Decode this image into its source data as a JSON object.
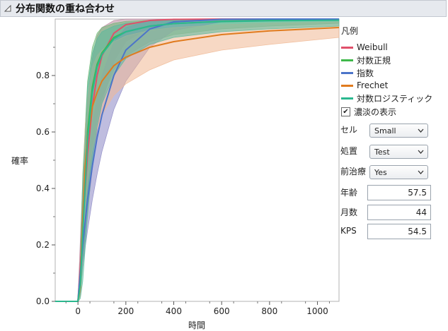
{
  "header": {
    "title": "分布関数の重ね合わせ"
  },
  "legend": {
    "title": "凡例",
    "items": [
      {
        "label": "Weibull",
        "color": "#e0506a"
      },
      {
        "label": "対数正規",
        "color": "#3fb84a"
      },
      {
        "label": "指数",
        "color": "#4c74c9"
      },
      {
        "label": "Frechet",
        "color": "#e07b1e"
      },
      {
        "label": "対数ロジスティック",
        "color": "#2bb88f"
      }
    ]
  },
  "shade_toggle": {
    "label": "濃淡の表示",
    "checked": true
  },
  "controls": {
    "cell": {
      "label": "セル",
      "value": "Small"
    },
    "treatment": {
      "label": "処置",
      "value": "Test"
    },
    "prior_therapy": {
      "label": "前治療",
      "value": "Yes"
    },
    "age": {
      "label": "年齢",
      "value": "57.5"
    },
    "months": {
      "label": "月数",
      "value": "44"
    },
    "kps": {
      "label": "KPS",
      "value": "54.5"
    }
  },
  "chart_data": {
    "type": "line",
    "title": "",
    "xlabel": "時間",
    "ylabel": "確率",
    "xlim": [
      -95,
      1090
    ],
    "ylim": [
      0,
      1
    ],
    "x_ticks": [
      0,
      200,
      400,
      600,
      800,
      1000
    ],
    "x_tick_labels": [
      "0",
      "200",
      "400",
      "600",
      "800",
      "1000"
    ],
    "y_ticks": [
      0,
      0.2,
      0.4,
      0.6,
      0.8
    ],
    "y_tick_labels": [
      "0.0",
      "0.2",
      "0.4",
      "0.6",
      "0.8"
    ],
    "grid": false,
    "legend_position": "right",
    "series": [
      {
        "name": "Weibull",
        "color": "#e0506a",
        "band_color": "#b8869c",
        "x": [
          0,
          10,
          20,
          40,
          60,
          80,
          100,
          150,
          200,
          300,
          400,
          600,
          800,
          1090
        ],
        "values": [
          0,
          0.12,
          0.27,
          0.52,
          0.69,
          0.8,
          0.87,
          0.95,
          0.98,
          0.995,
          0.999,
          1,
          1,
          1
        ],
        "lower": [
          0,
          0.05,
          0.13,
          0.32,
          0.47,
          0.6,
          0.7,
          0.85,
          0.92,
          0.97,
          0.99,
          0.998,
          1,
          1
        ],
        "upper": [
          0,
          0.22,
          0.43,
          0.71,
          0.86,
          0.94,
          0.97,
          0.995,
          1,
          1,
          1,
          1,
          1,
          1
        ]
      },
      {
        "name": "対数正規",
        "color": "#3fb84a",
        "band_color": "#6fb874",
        "x": [
          0,
          10,
          20,
          40,
          60,
          80,
          100,
          150,
          200,
          300,
          400,
          600,
          800,
          1090
        ],
        "values": [
          0,
          0.07,
          0.28,
          0.6,
          0.76,
          0.84,
          0.88,
          0.935,
          0.955,
          0.975,
          0.984,
          0.992,
          0.995,
          0.997
        ],
        "lower": [
          0,
          0.02,
          0.13,
          0.38,
          0.54,
          0.65,
          0.72,
          0.82,
          0.87,
          0.92,
          0.945,
          0.965,
          0.975,
          0.985
        ],
        "upper": [
          0,
          0.15,
          0.45,
          0.78,
          0.9,
          0.95,
          0.97,
          0.985,
          0.992,
          0.996,
          0.998,
          0.999,
          1,
          1
        ]
      },
      {
        "name": "指数",
        "color": "#4c74c9",
        "band_color": "#8a86c4",
        "x": [
          0,
          10,
          20,
          40,
          60,
          80,
          100,
          150,
          200,
          300,
          400,
          600,
          800,
          1090
        ],
        "values": [
          0,
          0.1,
          0.2,
          0.36,
          0.48,
          0.58,
          0.66,
          0.8,
          0.89,
          0.965,
          0.99,
          0.999,
          1,
          1
        ],
        "lower": [
          0,
          0.06,
          0.13,
          0.25,
          0.36,
          0.45,
          0.53,
          0.68,
          0.78,
          0.9,
          0.96,
          0.99,
          1,
          1
        ],
        "upper": [
          0,
          0.15,
          0.28,
          0.48,
          0.62,
          0.72,
          0.8,
          0.92,
          0.97,
          0.995,
          1,
          1,
          1,
          1
        ]
      },
      {
        "name": "Frechet",
        "color": "#e07b1e",
        "band_color": "#f0b894",
        "x": [
          0,
          10,
          20,
          30,
          40,
          60,
          80,
          100,
          150,
          200,
          300,
          400,
          600,
          800,
          1090
        ],
        "values": [
          0,
          0.05,
          0.29,
          0.48,
          0.58,
          0.69,
          0.74,
          0.78,
          0.835,
          0.865,
          0.9,
          0.92,
          0.945,
          0.958,
          0.97
        ],
        "lower": [
          0,
          0.02,
          0.18,
          0.33,
          0.42,
          0.54,
          0.61,
          0.66,
          0.73,
          0.77,
          0.82,
          0.855,
          0.89,
          0.91,
          0.935
        ],
        "upper": [
          0,
          0.09,
          0.4,
          0.62,
          0.72,
          0.83,
          0.87,
          0.89,
          0.92,
          0.94,
          0.96,
          0.97,
          0.98,
          0.985,
          0.99
        ]
      },
      {
        "name": "対数ロジスティック",
        "color": "#2bb88f",
        "band_color": "#5ab89c",
        "x": [
          0,
          10,
          20,
          40,
          60,
          80,
          100,
          150,
          200,
          300,
          400,
          600,
          800,
          1090
        ],
        "values": [
          0,
          0.06,
          0.24,
          0.57,
          0.74,
          0.83,
          0.875,
          0.93,
          0.955,
          0.975,
          0.984,
          0.991,
          0.994,
          0.996
        ],
        "lower": [
          0,
          0.01,
          0.07,
          0.3,
          0.5,
          0.62,
          0.7,
          0.8,
          0.86,
          0.91,
          0.935,
          0.955,
          0.965,
          0.975
        ],
        "upper": [
          0,
          0.12,
          0.4,
          0.76,
          0.88,
          0.93,
          0.955,
          0.975,
          0.985,
          0.993,
          0.996,
          0.998,
          0.999,
          1
        ]
      }
    ]
  }
}
